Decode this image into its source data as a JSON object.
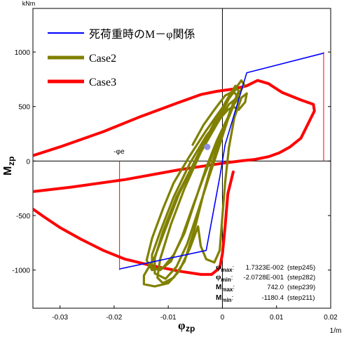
{
  "chart_data": {
    "type": "line",
    "xlabel": "φzp",
    "xlabel_sub": "zp",
    "ylabel": "Mzp",
    "ylabel_sub": "zp",
    "x_unit": "1/m",
    "y_unit": "kNm",
    "xlim": [
      -0.035,
      0.02
    ],
    "ylim": [
      -1350,
      1400
    ],
    "x_ticks": [
      -0.03,
      -0.02,
      -0.01,
      0,
      0.01,
      0.02
    ],
    "x_tick_labels": [
      "-0.03",
      "-0.02",
      "-0.01",
      "0",
      "0.01",
      "0.02"
    ],
    "y_ticks": [
      -1000,
      -500,
      0,
      500,
      1000
    ],
    "y_tick_labels": [
      "-1000",
      "-500",
      "0",
      "500",
      "1000"
    ],
    "phi_e_label": "-φe",
    "phi_e": -0.019,
    "phi_e_pos": 0.0187,
    "current_point": {
      "x": -0.0028,
      "y": 130
    },
    "legend": [
      {
        "label": "死荷重時のM－φ関係",
        "color": "#0000ff"
      },
      {
        "label": "Case2",
        "color": "#808000"
      },
      {
        "label": "Case3",
        "color": "#ff0000"
      }
    ],
    "stats": [
      {
        "name": "φmax",
        "value": "1.7323E-002",
        "step": "(step245)"
      },
      {
        "name": "φmin",
        "value": "-2.0728E-001",
        "step": "(step282)"
      },
      {
        "name": "Mmax",
        "value": "742.0",
        "step": "(step239)"
      },
      {
        "name": "Mmin",
        "value": "-1180.4",
        "step": "(step211)"
      }
    ],
    "series": [
      {
        "name": "死荷重時のM－φ関係",
        "color": "#0000ff",
        "width": 1.6,
        "points": [
          [
            -0.019,
            -990
          ],
          [
            -0.003,
            -820
          ],
          [
            -0.0005,
            -150
          ],
          [
            0,
            0
          ],
          [
            0.0005,
            150
          ],
          [
            0.0045,
            810
          ],
          [
            0.0187,
            990
          ]
        ]
      },
      {
        "name": "Case3",
        "color": "#ff0000",
        "width": 4,
        "points": [
          [
            -0.035,
            50
          ],
          [
            -0.03,
            130
          ],
          [
            -0.022,
            270
          ],
          [
            -0.015,
            410
          ],
          [
            -0.009,
            520
          ],
          [
            -0.004,
            610
          ],
          [
            -0.001,
            640
          ],
          [
            0.002,
            660
          ],
          [
            0.0045,
            690
          ],
          [
            0.0065,
            740
          ],
          [
            0.0085,
            710
          ],
          [
            0.011,
            630
          ],
          [
            0.0145,
            560
          ],
          [
            0.0168,
            520
          ],
          [
            0.017,
            460
          ],
          [
            0.0157,
            330
          ],
          [
            0.0145,
            210
          ],
          [
            0.0125,
            130
          ],
          [
            0.0105,
            75
          ],
          [
            0.0085,
            40
          ],
          [
            0.006,
            15
          ],
          [
            0.004,
            5
          ],
          [
            0,
            -20
          ],
          [
            -0.008,
            -80
          ],
          [
            -0.018,
            -170
          ],
          [
            -0.028,
            -240
          ],
          [
            -0.035,
            -280
          ]
        ]
      },
      {
        "name": "Case3",
        "color": "#ff0000",
        "width": 4,
        "points": [
          [
            -0.035,
            -440
          ],
          [
            -0.033,
            -510
          ],
          [
            -0.03,
            -610
          ],
          [
            -0.026,
            -720
          ],
          [
            -0.022,
            -820
          ],
          [
            -0.018,
            -900
          ],
          [
            -0.013,
            -960
          ],
          [
            -0.008,
            -1010
          ],
          [
            -0.004,
            -1040
          ],
          [
            -0.002,
            -1040
          ],
          [
            -0.0005,
            -980
          ],
          [
            0,
            -850
          ],
          [
            0.0005,
            -600
          ],
          [
            0.001,
            -300
          ],
          [
            0.002,
            -100
          ]
        ]
      },
      {
        "name": "Case2",
        "color": "#808000",
        "width": 3.2,
        "points": [
          [
            0.0025,
            660
          ],
          [
            0.001,
            560
          ],
          [
            -0.001,
            420
          ],
          [
            -0.003,
            280
          ],
          [
            -0.006,
            50
          ],
          [
            -0.009,
            -200
          ],
          [
            -0.011,
            -440
          ],
          [
            -0.013,
            -710
          ],
          [
            -0.014,
            -910
          ],
          [
            -0.013,
            -1000
          ],
          [
            -0.011,
            -980
          ],
          [
            -0.009,
            -860
          ],
          [
            -0.007,
            -660
          ],
          [
            -0.005,
            -360
          ],
          [
            -0.003,
            -60
          ],
          [
            -0.001,
            190
          ],
          [
            0.001,
            400
          ],
          [
            0.0022,
            560
          ],
          [
            0.0012,
            520
          ],
          [
            -0.001,
            340
          ],
          [
            -0.004,
            80
          ],
          [
            -0.007,
            -250
          ],
          [
            -0.0095,
            -580
          ],
          [
            -0.0115,
            -900
          ],
          [
            -0.012,
            -1070
          ],
          [
            -0.011,
            -1120
          ],
          [
            -0.009,
            -1070
          ],
          [
            -0.007,
            -920
          ],
          [
            -0.005,
            -600
          ],
          [
            -0.0035,
            -300
          ],
          [
            -0.002,
            -30
          ],
          [
            0,
            250
          ],
          [
            0.0015,
            470
          ],
          [
            0.003,
            640
          ],
          [
            0.0024,
            690
          ],
          [
            0.0008,
            560
          ],
          [
            -0.0012,
            380
          ],
          [
            -0.003,
            210
          ],
          [
            -0.0055,
            -40
          ],
          [
            -0.0085,
            -330
          ],
          [
            -0.011,
            -650
          ],
          [
            -0.0125,
            -890
          ],
          [
            -0.0125,
            -1030
          ],
          [
            -0.0105,
            -1080
          ],
          [
            -0.0085,
            -970
          ],
          [
            -0.0065,
            -760
          ],
          [
            -0.0045,
            -460
          ],
          [
            -0.0025,
            -150
          ],
          [
            -0.0005,
            150
          ],
          [
            0.001,
            380
          ],
          [
            0.0028,
            600
          ],
          [
            0.004,
            700
          ],
          [
            0.0035,
            740
          ],
          [
            0.0015,
            600
          ],
          [
            -0.0005,
            410
          ],
          [
            -0.0025,
            250
          ],
          [
            -0.005,
            0
          ],
          [
            -0.008,
            -300
          ],
          [
            -0.0105,
            -620
          ],
          [
            -0.0125,
            -880
          ],
          [
            -0.0145,
            -1050
          ],
          [
            -0.0145,
            -1130
          ],
          [
            -0.0125,
            -1150
          ],
          [
            -0.01,
            -1120
          ],
          [
            -0.008,
            -1010
          ],
          [
            -0.006,
            -800
          ],
          [
            -0.0045,
            -600
          ],
          [
            -0.004,
            -780
          ],
          [
            -0.003,
            -900
          ],
          [
            -0.0015,
            -930
          ],
          [
            -0.0005,
            -820
          ],
          [
            0,
            -500
          ],
          [
            0.0005,
            -200
          ],
          [
            0.0012,
            120
          ],
          [
            0.0022,
            400
          ],
          [
            0.0035,
            580
          ],
          [
            0.0045,
            620
          ],
          [
            0.0042,
            540
          ],
          [
            0.003,
            470
          ],
          [
            0.002,
            500
          ],
          [
            0.001,
            470
          ],
          [
            -0.001,
            360
          ],
          [
            -0.003,
            230
          ],
          [
            -0.006,
            -20
          ],
          [
            -0.009,
            -330
          ],
          [
            -0.0115,
            -650
          ],
          [
            -0.013,
            -860
          ],
          [
            -0.013,
            -980
          ],
          [
            -0.0115,
            -1000
          ],
          [
            -0.0095,
            -920
          ],
          [
            -0.0075,
            -700
          ],
          [
            -0.0055,
            -420
          ],
          [
            -0.0035,
            -150
          ],
          [
            -0.0015,
            100
          ],
          [
            0.0005,
            320
          ],
          [
            0.002,
            510
          ],
          [
            0.003,
            580
          ],
          [
            0.002,
            640
          ],
          [
            0.0005,
            600
          ],
          [
            -0.0015,
            470
          ],
          [
            -0.0035,
            330
          ],
          [
            -0.0055,
            150
          ]
        ]
      }
    ]
  }
}
